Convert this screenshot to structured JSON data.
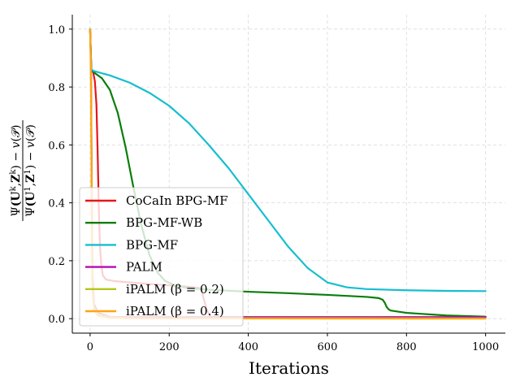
{
  "chart_data": {
    "type": "line",
    "title": "",
    "xlabel": "Iterations",
    "ylabel": {
      "psi": "Ψ",
      "num_arg": "(U",
      "k_sup": "k",
      "comma": ",",
      "z": "Z",
      "close": ")",
      "minus": " − ",
      "v": "v",
      "open": "(",
      "p": "𝒫",
      "den_sup": "1"
    },
    "xlim": [
      -45,
      1050
    ],
    "ylim": [
      -0.05,
      1.05
    ],
    "xticks": [
      0,
      200,
      400,
      600,
      800,
      1000
    ],
    "yticks": [
      0.0,
      0.2,
      0.4,
      0.6,
      0.8,
      1.0
    ],
    "xtick_labels": [
      "0",
      "200",
      "400",
      "600",
      "800",
      "1000"
    ],
    "ytick_labels": [
      "0.0",
      "0.2",
      "0.4",
      "0.6",
      "0.8",
      "1.0"
    ],
    "grid": true,
    "legend_position": "lower-left",
    "series": [
      {
        "name": "CoCaIn BPG-MF",
        "color": "#e8141b",
        "x": [
          0,
          3,
          8,
          12,
          16,
          19,
          22,
          25,
          28,
          32,
          40,
          60,
          100,
          150,
          200,
          250,
          280,
          295,
          305,
          400,
          600,
          800,
          1000
        ],
        "y": [
          1.0,
          0.86,
          0.85,
          0.82,
          0.74,
          0.58,
          0.38,
          0.25,
          0.19,
          0.15,
          0.135,
          0.13,
          0.125,
          0.12,
          0.115,
          0.11,
          0.105,
          0.03,
          0.006,
          0.005,
          0.005,
          0.005,
          0.005
        ]
      },
      {
        "name": "BPG-MF-WB",
        "color": "#0a7d0a",
        "x": [
          0,
          3,
          10,
          30,
          50,
          70,
          90,
          110,
          130,
          150,
          170,
          190,
          220,
          260,
          300,
          400,
          500,
          600,
          700,
          730,
          740,
          745,
          750,
          755,
          760,
          800,
          900,
          1000
        ],
        "y": [
          1.0,
          0.86,
          0.85,
          0.83,
          0.79,
          0.71,
          0.59,
          0.45,
          0.32,
          0.22,
          0.16,
          0.13,
          0.112,
          0.104,
          0.1,
          0.093,
          0.088,
          0.082,
          0.075,
          0.071,
          0.065,
          0.055,
          0.04,
          0.032,
          0.028,
          0.02,
          0.011,
          0.007
        ]
      },
      {
        "name": "BPG-MF",
        "color": "#17becf",
        "x": [
          0,
          3,
          10,
          50,
          100,
          150,
          200,
          250,
          300,
          350,
          400,
          450,
          500,
          550,
          600,
          650,
          700,
          800,
          900,
          1000
        ],
        "y": [
          1.0,
          0.86,
          0.855,
          0.84,
          0.815,
          0.78,
          0.735,
          0.675,
          0.6,
          0.52,
          0.43,
          0.34,
          0.25,
          0.175,
          0.125,
          0.108,
          0.102,
          0.098,
          0.096,
          0.095
        ]
      },
      {
        "name": "PALM",
        "color": "#b30db3",
        "x": [
          0,
          2,
          4,
          6,
          10,
          20,
          50,
          100,
          1000
        ],
        "y": [
          1.0,
          0.9,
          0.5,
          0.15,
          0.05,
          0.02,
          0.006,
          0.005,
          0.005
        ]
      },
      {
        "name": "iPALM (β = 0.2)",
        "color": "#b5c61c",
        "x": [
          0,
          2,
          4,
          6,
          10,
          20,
          50,
          100,
          1000
        ],
        "y": [
          1.0,
          0.88,
          0.45,
          0.12,
          0.04,
          0.015,
          0.004,
          0.002,
          0.001
        ]
      },
      {
        "name": "iPALM (β = 0.4)",
        "color": "#ffa510",
        "x": [
          0,
          2,
          4,
          6,
          10,
          20,
          50,
          100,
          1000
        ],
        "y": [
          1.0,
          0.85,
          0.4,
          0.1,
          0.03,
          0.01,
          0.003,
          0.001,
          0.0
        ]
      }
    ]
  }
}
